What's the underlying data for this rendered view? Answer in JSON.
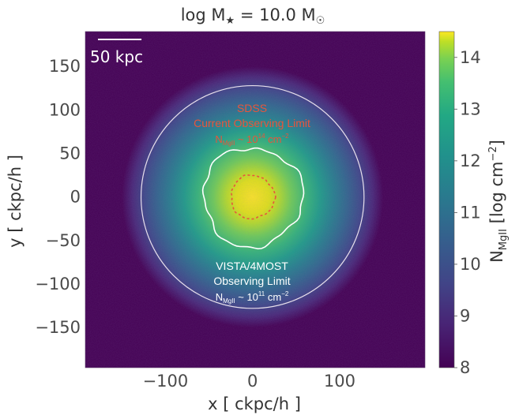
{
  "chart_data": {
    "type": "heatmap",
    "title": "log M★ = 10.0 M☉",
    "title_parts": {
      "prefix": "log M",
      "star": "★",
      "mid": " = 10.0 M",
      "sun": "☉"
    },
    "xlabel": "x [ ckpc/h ]",
    "ylabel": "y [ ckpc/h ]",
    "xlim": [
      -192,
      198
    ],
    "ylim": [
      -196,
      190
    ],
    "xticks": [
      -100,
      0,
      100
    ],
    "xtick_labels": [
      "−100",
      "0",
      "100"
    ],
    "yticks": [
      150,
      100,
      50,
      0,
      -50,
      -100,
      -150
    ],
    "ytick_labels": [
      "150",
      "100",
      "50",
      "0",
      "−50",
      "−100",
      "−150"
    ],
    "colorbar": {
      "label_prefix": "N",
      "label_sub": "MgII",
      "label_units": " [log cm",
      "label_sup": "−2",
      "label_close": "]",
      "range": [
        8,
        14.5
      ],
      "ticks": [
        8,
        9,
        10,
        11,
        12,
        13,
        14
      ],
      "tick_labels": [
        "8",
        "9",
        "10",
        "11",
        "12",
        "13",
        "14"
      ],
      "colormap": "viridis"
    },
    "scale_bar": {
      "label": "50 kpc",
      "length_kpc": 50
    },
    "circle_radius_ckpc": 128,
    "contours": [
      {
        "level_log_cm2": 14,
        "color": "#e8553c",
        "style": "dashed",
        "approx_radius_ckpc": 25
      },
      {
        "level_log_cm2": 11,
        "color": "#ffffff",
        "style": "solid",
        "approx_radius_ckpc": 57
      }
    ],
    "annotations": [
      {
        "lines": [
          "SDSS",
          "Current Observing Limit"
        ],
        "limit_prefix": "N",
        "limit_sub": "MgII",
        "limit_mid": " ~ 10",
        "limit_sup": "14",
        "limit_units": " cm",
        "limit_units_sup": "−2",
        "color": "#e8553c"
      },
      {
        "lines": [
          "VISTA/4MOST",
          "Observing Limit"
        ],
        "limit_prefix": "N",
        "limit_sub": "MgII",
        "limit_mid": " ~ 10",
        "limit_sup": "11",
        "limit_units": " cm",
        "limit_units_sup": "−2",
        "color": "#ffffff"
      }
    ],
    "colors": {
      "background_map": "#440154",
      "circle": "#e8e0ec"
    }
  }
}
